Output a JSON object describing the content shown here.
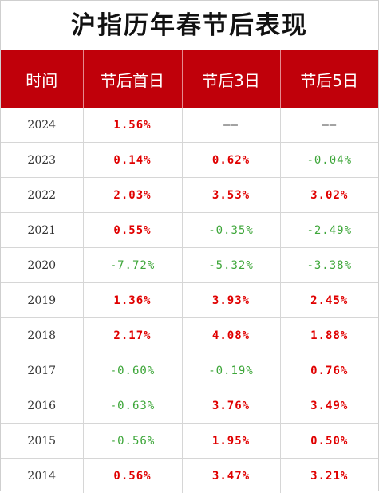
{
  "title": "沪指历年春节后表现",
  "colors": {
    "header_bg": "#c0000a",
    "positive": "#e00000",
    "negative": "#3da639"
  },
  "headers": [
    "时间",
    "节后首日",
    "节后3日",
    "节后5日"
  ],
  "rows": [
    {
      "year": "2024",
      "d1": "1.56%",
      "d3": "——",
      "d5": "——"
    },
    {
      "year": "2023",
      "d1": "0.14%",
      "d3": "0.62%",
      "d5": "-0.04%"
    },
    {
      "year": "2022",
      "d1": "2.03%",
      "d3": "3.53%",
      "d5": "3.02%"
    },
    {
      "year": "2021",
      "d1": "0.55%",
      "d3": "-0.35%",
      "d5": "-2.49%"
    },
    {
      "year": "2020",
      "d1": "-7.72%",
      "d3": "-5.32%",
      "d5": "-3.38%"
    },
    {
      "year": "2019",
      "d1": "1.36%",
      "d3": "3.93%",
      "d5": "2.45%"
    },
    {
      "year": "2018",
      "d1": "2.17%",
      "d3": "4.08%",
      "d5": "1.88%"
    },
    {
      "year": "2017",
      "d1": "-0.60%",
      "d3": "-0.19%",
      "d5": "0.76%"
    },
    {
      "year": "2016",
      "d1": "-0.63%",
      "d3": "3.76%",
      "d5": "3.49%"
    },
    {
      "year": "2015",
      "d1": "-0.56%",
      "d3": "1.95%",
      "d5": "0.50%"
    },
    {
      "year": "2014",
      "d1": "0.56%",
      "d3": "3.47%",
      "d5": "3.21%"
    }
  ]
}
